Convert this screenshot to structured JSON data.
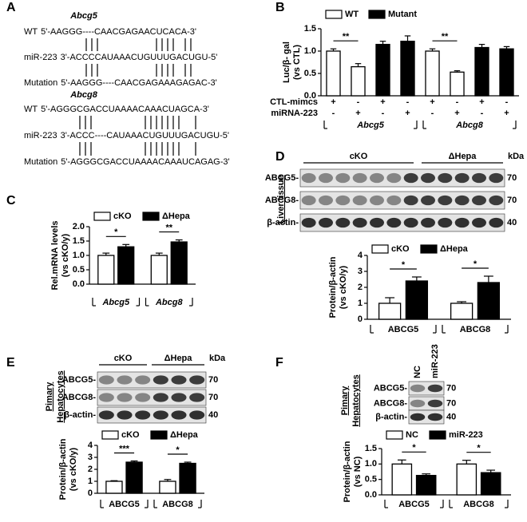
{
  "panel_labels": [
    "A",
    "B",
    "C",
    "D",
    "E",
    "F"
  ],
  "sequences": [
    {
      "gene": "Abcg5",
      "lines": [
        {
          "name": "WT",
          "seq": "5'-AAGGG----CAACGAGAACUCACA-3'"
        },
        {
          "name": "miR-223",
          "seq": "3'-ACCCCAUAAACUGUUUGACUGU-5'"
        },
        {
          "name": "Mutation",
          "seq": "5'-AAGGG----CAACGAGAAAGAGAC-3'"
        }
      ]
    },
    {
      "gene": "Abcg8",
      "lines": [
        {
          "name": "WT",
          "seq": "5'-AGGGCGACCUAAAACAAACUAGCA-3'"
        },
        {
          "name": "miR-223",
          "seq": "3'-ACCC----CAUAAACUGUUUGACUGU-5'"
        },
        {
          "name": "Mutation",
          "seq": "5'-AGGGCGACCUAAAACAAAUCAGAG-3'"
        }
      ]
    }
  ],
  "blots": [
    {
      "side_label": [
        "Liver tissue"
      ],
      "columns": [
        "cKO",
        "ΔHepa"
      ],
      "unit": "kDa",
      "rows": [
        {
          "name": "ABCG5-",
          "kda": 70
        },
        {
          "name": "ABCG8-",
          "kda": 70
        },
        {
          "name": "β-actin-",
          "kda": 40
        }
      ]
    },
    {
      "side_label": [
        "Pimary",
        "Hepatocytes"
      ],
      "columns": [
        "cKO",
        "ΔHepa"
      ],
      "unit": "kDa",
      "rows": [
        {
          "name": "ABCG5-",
          "kda": 70
        },
        {
          "name": "ABCG8-",
          "kda": 70
        },
        {
          "name": "β-actin-",
          "kda": 40
        }
      ]
    },
    {
      "side_label": [
        "Pimary",
        "Hepatocytes"
      ],
      "columns": [
        "NC",
        "miR-223"
      ],
      "rows": [
        {
          "name": "ABCG5-",
          "kda": 70
        },
        {
          "name": "ABCG8-",
          "kda": 70
        },
        {
          "name": "β-actin-",
          "kda": 40
        }
      ]
    }
  ],
  "chart_data": [
    {
      "type": "bar",
      "ylabel": [
        "Luc/β- gal",
        "(vs CTL)"
      ],
      "categories": [
        null,
        null,
        null,
        null,
        null,
        null,
        null,
        null
      ],
      "series": [
        {
          "name": "WT",
          "color": "#ffffff",
          "values": [
            1.0,
            0.65,
            null,
            null,
            1.0,
            0.53,
            null,
            null
          ],
          "errors": [
            0.05,
            0.07,
            null,
            null,
            0.05,
            0.03,
            null,
            null
          ]
        },
        {
          "name": "Mutant",
          "color": "#000000",
          "values": [
            null,
            null,
            1.15,
            1.22,
            null,
            null,
            1.08,
            1.05
          ],
          "errors": [
            null,
            null,
            0.07,
            0.12,
            null,
            null,
            0.07,
            0.05
          ]
        }
      ],
      "ylim": [
        0,
        1.5
      ],
      "yticks": [
        {
          "value": 0,
          "label": "0.0"
        },
        0.5,
        {
          "value": 1,
          "label": "1.0"
        },
        1.5
      ],
      "row_labels": [
        "CTL-mimcs",
        "miRNA-223"
      ],
      "rows": [
        [
          "+",
          "-",
          "+",
          "-",
          "+",
          "-",
          "+",
          "-"
        ],
        [
          "-",
          "+",
          "-",
          "+",
          "-",
          "+",
          "-",
          "+"
        ]
      ],
      "groups": [
        "Abcg5",
        "Abcg8"
      ],
      "significance": [
        "**",
        "**"
      ],
      "legend": "top"
    },
    {
      "type": "bar",
      "ylabel": [
        "Rel.mRNA levels",
        "(vs cKO/y)"
      ],
      "categories": [
        "Abcg5",
        "Abcg8"
      ],
      "series": [
        {
          "name": "cKO",
          "color": "#ffffff",
          "values": [
            1.0,
            1.0
          ],
          "errors": [
            0.08,
            0.08
          ]
        },
        {
          "name": "ΔHepa",
          "color": "#000000",
          "values": [
            1.3,
            1.47
          ],
          "errors": [
            0.08,
            0.07
          ]
        }
      ],
      "ylim": [
        0,
        2
      ],
      "yticks": [
        {
          "value": 0,
          "label": "0.0"
        },
        0.5,
        {
          "value": 1,
          "label": "1.0"
        },
        1.5,
        {
          "value": 2,
          "label": "2.0"
        }
      ],
      "significance": [
        "*",
        "**"
      ],
      "legend": "top"
    },
    {
      "type": "bar",
      "ylabel": [
        "Protein/β-actin",
        "(vs cKO/y)"
      ],
      "categories": [
        "ABCG5",
        "ABCG8"
      ],
      "series": [
        {
          "name": "cKO",
          "color": "#ffffff",
          "values": [
            1.0,
            1.0
          ],
          "errors": [
            0.35,
            0.1
          ]
        },
        {
          "name": "ΔHepa",
          "color": "#000000",
          "values": [
            2.4,
            2.3
          ],
          "errors": [
            0.25,
            0.4
          ]
        }
      ],
      "ylim": [
        0,
        4
      ],
      "yticks": [
        0,
        1,
        2,
        3,
        4
      ],
      "significance": [
        "*",
        "*"
      ],
      "legend": "top"
    },
    {
      "type": "bar",
      "ylabel": [
        "Protein/β-actin",
        "(vs cKO/y)"
      ],
      "categories": [
        "ABCG5",
        "ABCG8"
      ],
      "series": [
        {
          "name": "cKO",
          "color": "#ffffff",
          "values": [
            1.0,
            1.0
          ],
          "errors": [
            0.05,
            0.15
          ]
        },
        {
          "name": "ΔHepa",
          "color": "#000000",
          "values": [
            2.6,
            2.5
          ],
          "errors": [
            0.1,
            0.1
          ]
        }
      ],
      "ylim": [
        0,
        4
      ],
      "yticks": [
        0,
        1,
        2,
        3,
        4
      ],
      "significance": [
        "***",
        "*"
      ],
      "legend": "top"
    },
    {
      "type": "bar",
      "ylabel": [
        "Protein/β-actin",
        "(vs NC)"
      ],
      "categories": [
        "ABCG5",
        "ABCG8"
      ],
      "series": [
        {
          "name": "NC",
          "color": "#ffffff",
          "values": [
            1.0,
            1.0
          ],
          "errors": [
            0.13,
            0.12
          ]
        },
        {
          "name": "miR-223",
          "color": "#000000",
          "values": [
            0.63,
            0.72
          ],
          "errors": [
            0.05,
            0.08
          ]
        }
      ],
      "ylim": [
        0,
        1.5
      ],
      "yticks": [
        {
          "value": 0,
          "label": "0.0"
        },
        0.5,
        {
          "value": 1,
          "label": "1.0"
        },
        1.5
      ],
      "significance": [
        "*",
        "*"
      ],
      "legend": "top"
    }
  ]
}
